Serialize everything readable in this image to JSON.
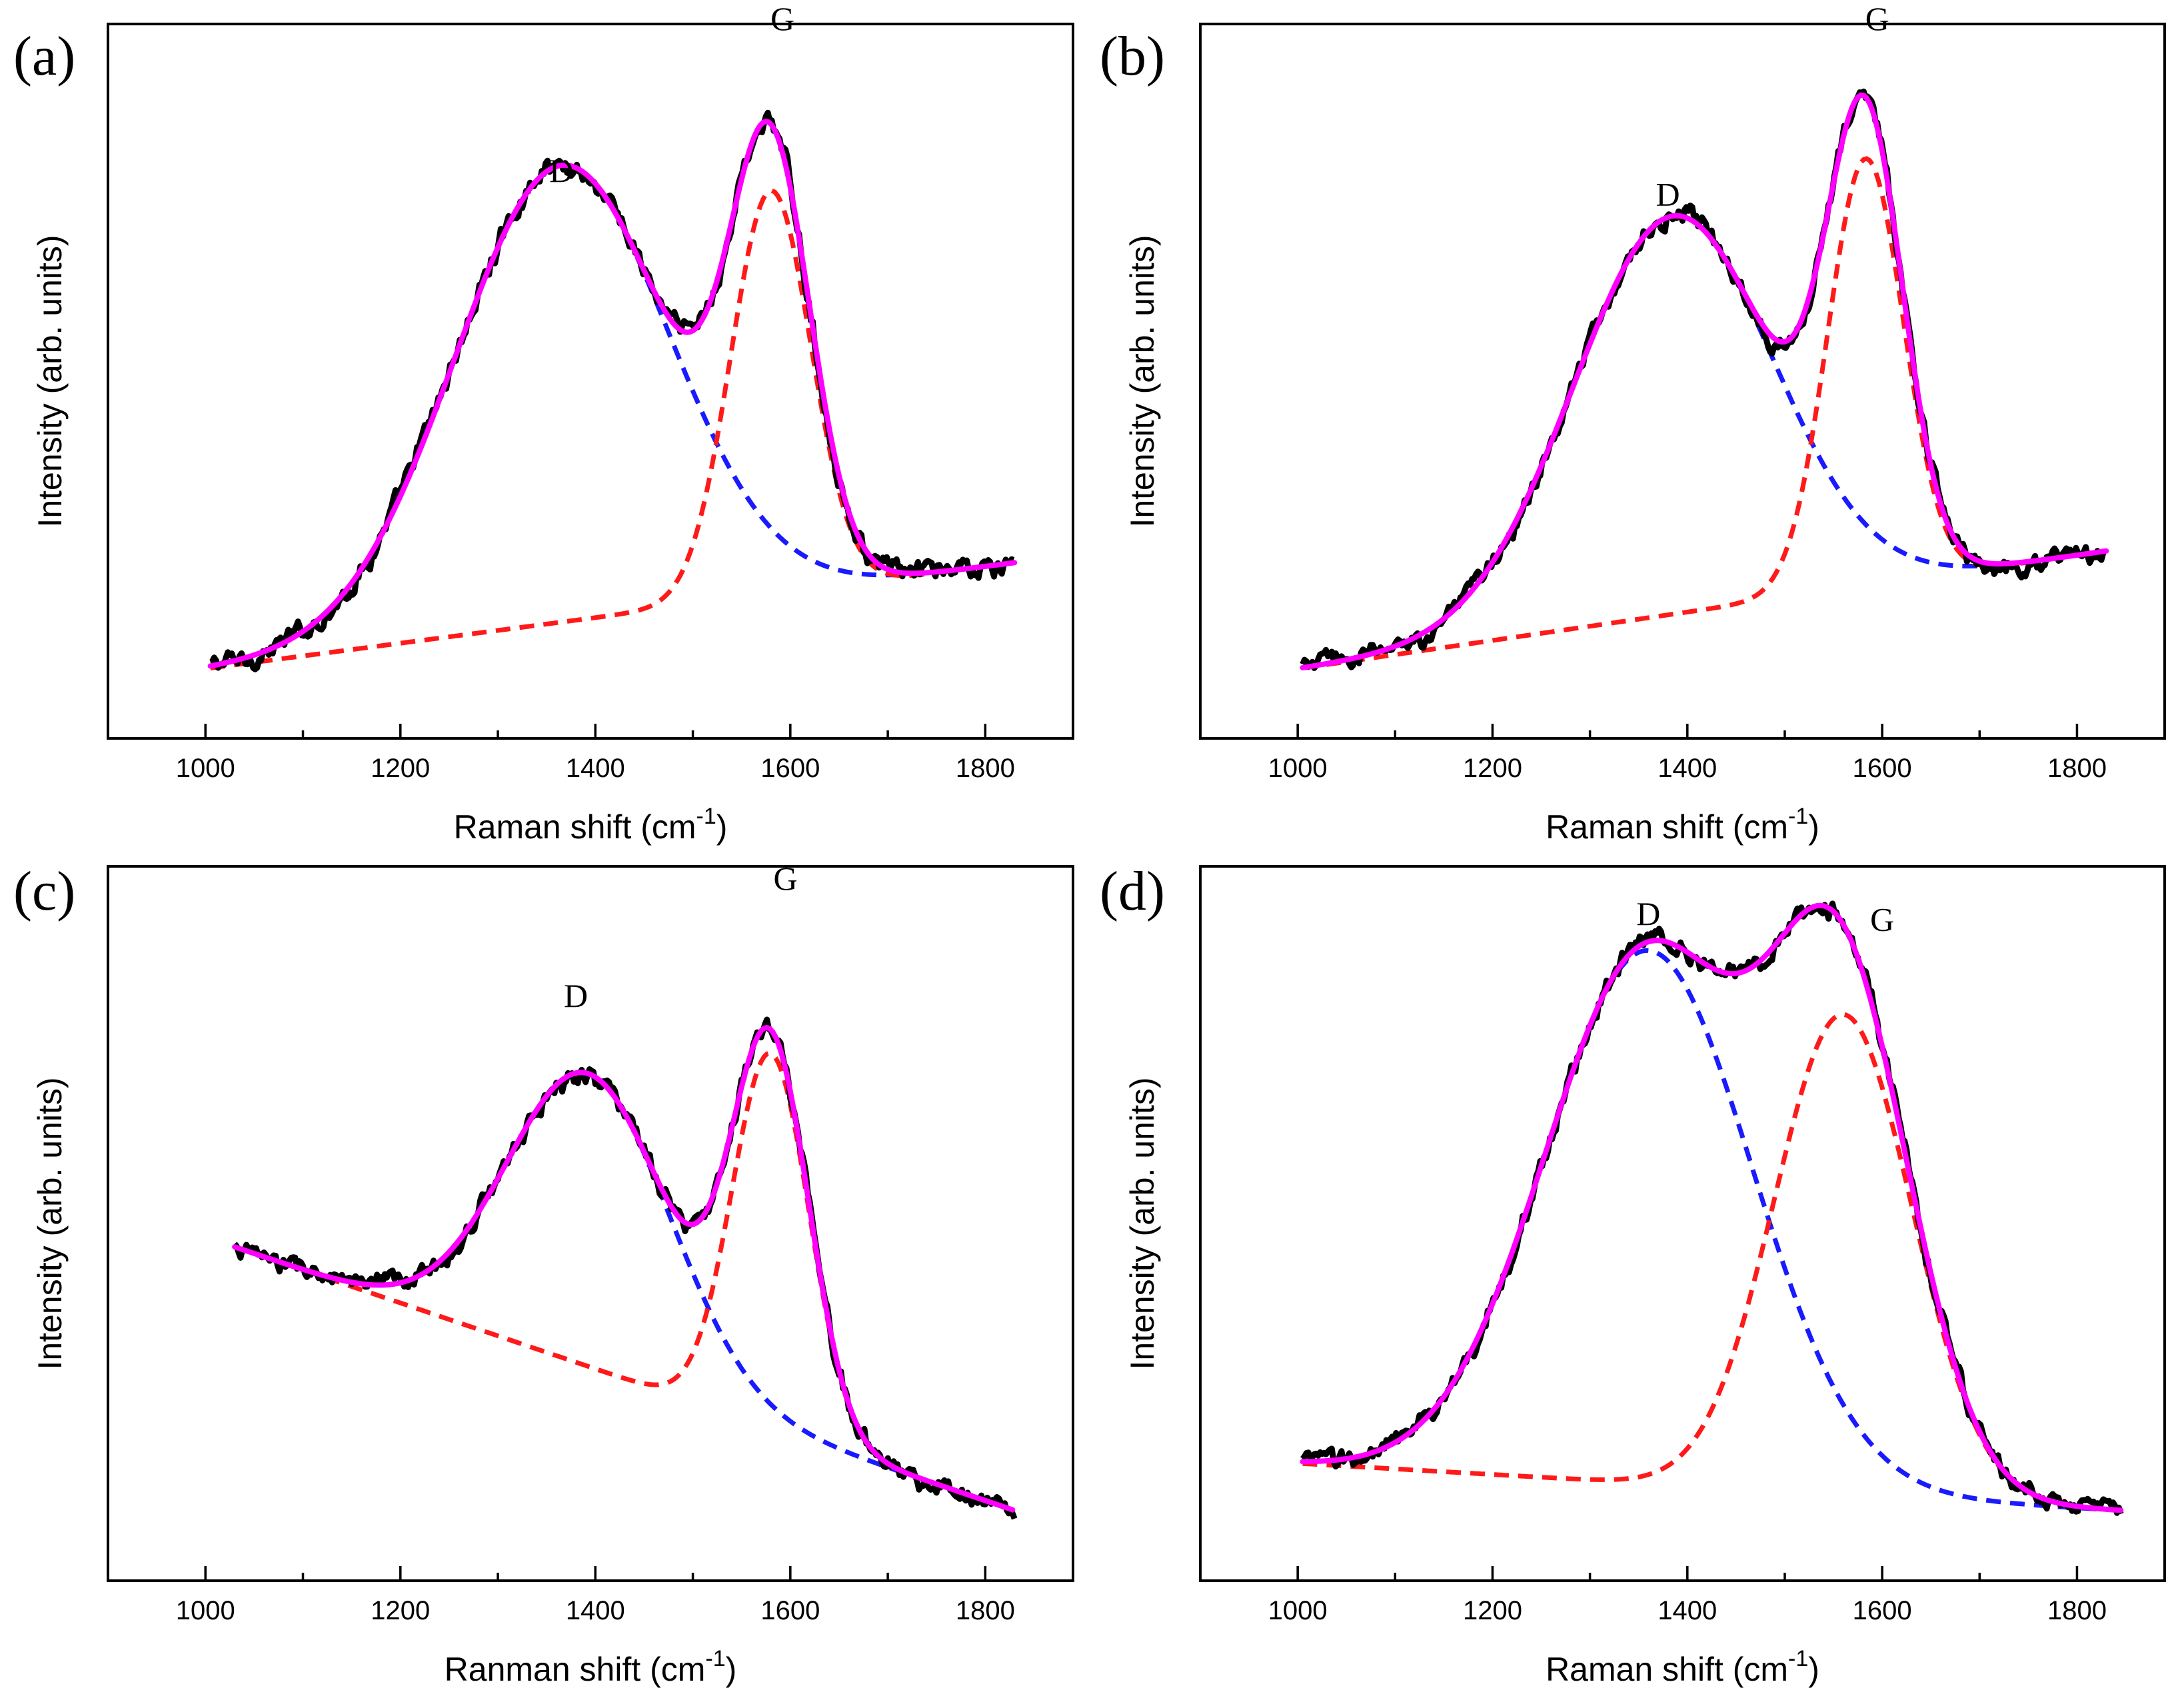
{
  "colors": {
    "experimental": "#000000",
    "fit_total": "#ff00ff",
    "d_band": "#1a1aff",
    "g_band": "#ff1a1a"
  },
  "chart_data": [
    {
      "type": "line",
      "panel": "(a)",
      "xlabel": "Raman shift (cm",
      "xlabel_sup": "-1",
      "ylabel": "Intensity (arb. units)",
      "xlim": [
        900,
        1890
      ],
      "ylim": [
        -0.12,
        1.1
      ],
      "xticks": [
        "1000",
        "1200",
        "1400",
        "1600",
        "1800"
      ],
      "grid": false,
      "annotations": [
        {
          "text": "D",
          "x": 1365,
          "y": 0.83
        },
        {
          "text": "G",
          "x": 1592,
          "y": 1.09
        }
      ],
      "x_range": [
        1005,
        1830
      ],
      "baseline": [
        0.0,
        0.18
      ],
      "peaks": [
        {
          "name": "D",
          "center": 1365,
          "amplitude": 0.78,
          "width": 155
        },
        {
          "name": "G",
          "center": 1580,
          "amplitude": 0.69,
          "width": 58
        }
      ],
      "series": [
        {
          "name": "Experimental spectrum",
          "style": "noisy",
          "noise": 0.013
        },
        {
          "name": "Fitted total",
          "components": [
            "D",
            "G",
            "base"
          ]
        },
        {
          "name": "D band fit",
          "components": [
            "D",
            "base"
          ],
          "dashed": true
        },
        {
          "name": "G band fit",
          "components": [
            "G",
            "base"
          ],
          "dashed": true
        }
      ]
    },
    {
      "type": "line",
      "panel": "(b)",
      "xlabel": "Raman shift (cm",
      "xlabel_sup": "-1",
      "ylabel": "Intensity (arb. units)",
      "xlim": [
        900,
        1890
      ],
      "ylim": [
        -0.12,
        1.1
      ],
      "xticks": [
        "1000",
        "1200",
        "1400",
        "1600",
        "1800"
      ],
      "grid": false,
      "annotations": [
        {
          "text": "D",
          "x": 1380,
          "y": 0.79
        },
        {
          "text": "G",
          "x": 1595,
          "y": 1.09
        }
      ],
      "x_range": [
        1005,
        1830
      ],
      "baseline": [
        0.0,
        0.2
      ],
      "peaks": [
        {
          "name": "D",
          "center": 1385,
          "amplitude": 0.68,
          "width": 145
        },
        {
          "name": "G",
          "center": 1583,
          "amplitude": 0.73,
          "width": 55
        }
      ],
      "series": [
        {
          "name": "Experimental spectrum",
          "style": "noisy",
          "noise": 0.012
        },
        {
          "name": "Fitted total",
          "components": [
            "D",
            "G",
            "base"
          ]
        },
        {
          "name": "D band fit",
          "components": [
            "D",
            "base"
          ],
          "dashed": true
        },
        {
          "name": "G band fit",
          "components": [
            "G",
            "base"
          ],
          "dashed": true
        }
      ]
    },
    {
      "type": "line",
      "panel": "(c)",
      "xlabel": "Ranman shift (cm",
      "xlabel_sup": "-1",
      "ylabel": "Intensity (arb. units)",
      "xlim": [
        900,
        1890
      ],
      "ylim": [
        -0.12,
        1.1
      ],
      "xticks": [
        "1000",
        "1200",
        "1400",
        "1600",
        "1800"
      ],
      "grid": false,
      "annotations": [
        {
          "text": "D",
          "x": 1380,
          "y": 0.86
        },
        {
          "text": "G",
          "x": 1595,
          "y": 1.06
        }
      ],
      "x_range": [
        1030,
        1830
      ],
      "baseline": [
        0.45,
        0.0
      ],
      "peaks": [
        {
          "name": "D",
          "center": 1393,
          "amplitude": 0.5,
          "width": 118
        },
        {
          "name": "G",
          "center": 1580,
          "amplitude": 0.64,
          "width": 56
        }
      ],
      "series": [
        {
          "name": "Experimental spectrum",
          "style": "noisy",
          "noise": 0.012
        },
        {
          "name": "Fitted total",
          "components": [
            "D",
            "G",
            "base"
          ]
        },
        {
          "name": "D band fit",
          "components": [
            "D",
            "base"
          ],
          "dashed": true
        },
        {
          "name": "G band fit",
          "components": [
            "G",
            "base"
          ],
          "dashed": true
        }
      ]
    },
    {
      "type": "line",
      "panel": "(d)",
      "xlabel": "Raman shift (cm",
      "xlabel_sup": "-1",
      "ylabel": "Intensity (arb. units)",
      "xlim": [
        900,
        1890
      ],
      "ylim": [
        -0.12,
        1.1
      ],
      "xticks": [
        "1000",
        "1200",
        "1400",
        "1600",
        "1800"
      ],
      "grid": false,
      "annotations": [
        {
          "text": "D",
          "x": 1360,
          "y": 1.0
        },
        {
          "text": "G",
          "x": 1600,
          "y": 0.99
        }
      ],
      "x_range": [
        1005,
        1845
      ],
      "baseline": [
        0.08,
        0.0
      ],
      "peaks": [
        {
          "name": "D",
          "center": 1360,
          "amplitude": 0.91,
          "width": 150
        },
        {
          "name": "G",
          "center": 1560,
          "amplitude": 0.82,
          "width": 100
        }
      ],
      "series": [
        {
          "name": "Experimental spectrum",
          "style": "noisy",
          "noise": 0.012
        },
        {
          "name": "Fitted total",
          "components": [
            "D",
            "G",
            "base"
          ]
        },
        {
          "name": "D band fit",
          "components": [
            "D",
            "base"
          ],
          "dashed": true
        },
        {
          "name": "G band fit",
          "components": [
            "G",
            "base"
          ],
          "dashed": true
        }
      ]
    }
  ]
}
